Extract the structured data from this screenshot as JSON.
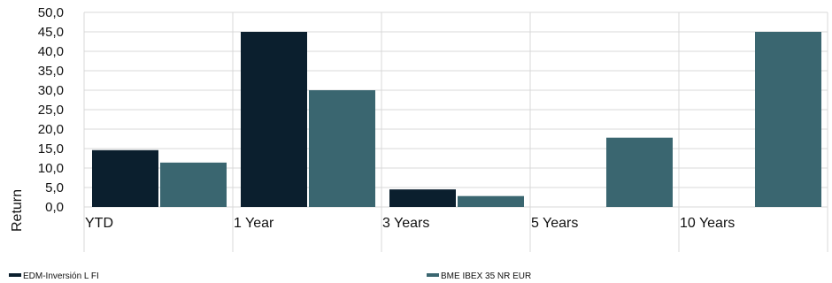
{
  "chart_data": {
    "type": "bar",
    "title": "",
    "xlabel": "",
    "ylabel": "Return",
    "categories": [
      "YTD",
      "1 Year",
      "3 Years",
      "5 Years",
      "10 Years"
    ],
    "series": [
      {
        "name": "EDM-Inversión L FI",
        "color": "#0b1f2e",
        "values": [
          14.6,
          45.0,
          4.5,
          null,
          null
        ]
      },
      {
        "name": "BME IBEX 35 NR EUR",
        "color": "#3a6670",
        "values": [
          11.4,
          30.0,
          2.8,
          17.8,
          45.0
        ]
      }
    ],
    "ylim": [
      0,
      50
    ],
    "yticks": [
      "0,0",
      "5,0",
      "10,0",
      "15,0",
      "20,0",
      "25,0",
      "30,0",
      "35,0",
      "40,0",
      "45,0",
      "50,0"
    ],
    "grid": true,
    "legend_position": "bottom"
  }
}
